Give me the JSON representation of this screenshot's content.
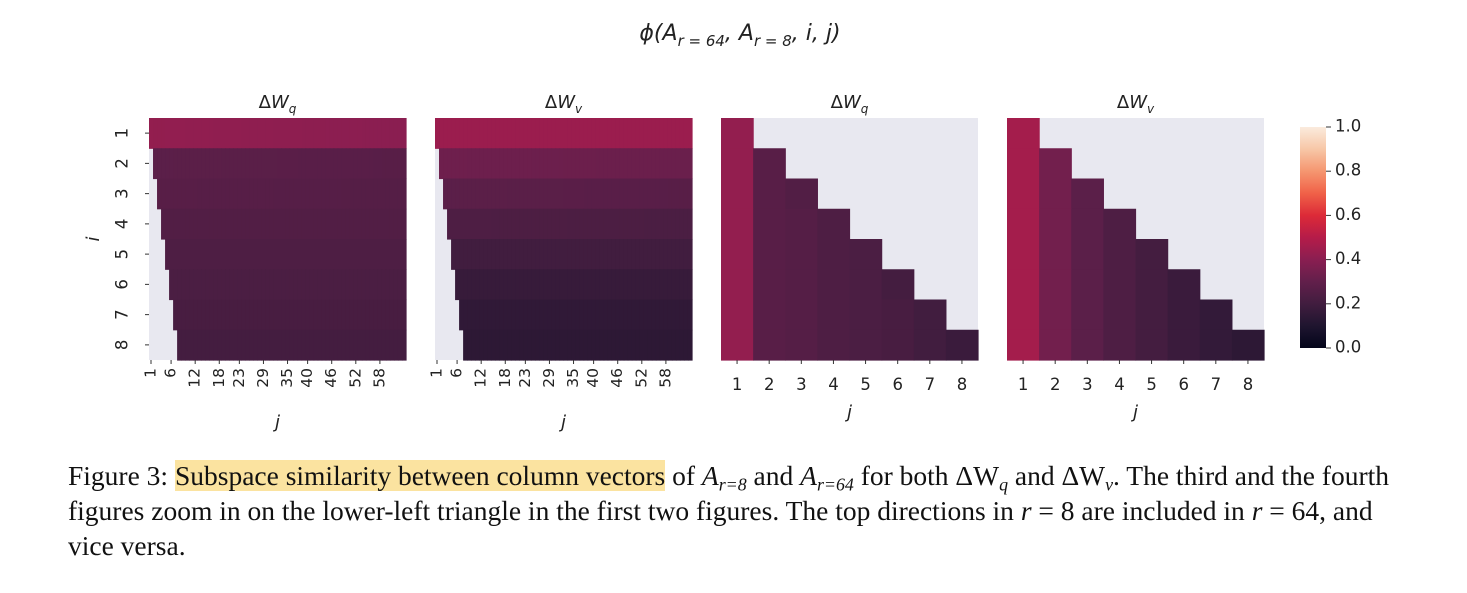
{
  "figure": {
    "suptitle_prefix": "ϕ(A",
    "suptitle_sub1": "r = 64",
    "suptitle_sep1": ", A",
    "suptitle_sub2": "r = 8",
    "suptitle_suffix": ", i, j)"
  },
  "chart_data": [
    {
      "type": "heatmap",
      "title": "ΔWq",
      "ylabel": "i",
      "xlabel": "j",
      "y_categories": [
        "1",
        "2",
        "3",
        "4",
        "5",
        "6",
        "7",
        "8"
      ],
      "x_tick_labels": [
        "1",
        "6",
        "12",
        "18",
        "23",
        "29",
        "35",
        "40",
        "46",
        "52",
        "58"
      ],
      "n_columns": 64,
      "left_start": [
        0.42,
        0.28,
        0.27,
        0.25,
        0.24,
        0.23,
        0.22,
        0.21
      ],
      "right_end": [
        0.4,
        0.27,
        0.26,
        0.25,
        0.24,
        0.23,
        0.22,
        0.21
      ]
    },
    {
      "type": "heatmap",
      "title": "ΔWv",
      "ylabel": "",
      "xlabel": "j",
      "y_categories": [
        "1",
        "2",
        "3",
        "4",
        "5",
        "6",
        "7",
        "8"
      ],
      "x_tick_labels": [
        "1",
        "6",
        "12",
        "18",
        "23",
        "29",
        "35",
        "40",
        "46",
        "52",
        "58"
      ],
      "n_columns": 64,
      "left_start": [
        0.44,
        0.33,
        0.28,
        0.24,
        0.2,
        0.17,
        0.15,
        0.14
      ],
      "right_end": [
        0.44,
        0.32,
        0.27,
        0.23,
        0.2,
        0.17,
        0.15,
        0.14
      ]
    },
    {
      "type": "heatmap",
      "title": "ΔWq",
      "ylabel": "",
      "xlabel": "j",
      "y_categories": [
        "1",
        "2",
        "3",
        "4",
        "5",
        "6",
        "7",
        "8"
      ],
      "x_categories": [
        "1",
        "2",
        "3",
        "4",
        "5",
        "6",
        "7",
        "8"
      ],
      "matrix": [
        [
          0.42,
          null,
          null,
          null,
          null,
          null,
          null,
          null
        ],
        [
          0.42,
          0.27,
          null,
          null,
          null,
          null,
          null,
          null
        ],
        [
          0.42,
          0.27,
          0.25,
          null,
          null,
          null,
          null,
          null
        ],
        [
          0.42,
          0.27,
          0.26,
          0.24,
          null,
          null,
          null,
          null
        ],
        [
          0.42,
          0.27,
          0.26,
          0.24,
          0.23,
          null,
          null,
          null
        ],
        [
          0.42,
          0.27,
          0.26,
          0.24,
          0.23,
          0.21,
          null,
          null
        ],
        [
          0.42,
          0.27,
          0.26,
          0.24,
          0.23,
          0.22,
          0.2,
          null
        ],
        [
          0.42,
          0.27,
          0.26,
          0.24,
          0.23,
          0.22,
          0.2,
          0.18
        ]
      ]
    },
    {
      "type": "heatmap",
      "title": "ΔWv",
      "ylabel": "",
      "xlabel": "j",
      "y_categories": [
        "1",
        "2",
        "3",
        "4",
        "5",
        "6",
        "7",
        "8"
      ],
      "x_categories": [
        "1",
        "2",
        "3",
        "4",
        "5",
        "6",
        "7",
        "8"
      ],
      "matrix": [
        [
          0.46,
          null,
          null,
          null,
          null,
          null,
          null,
          null
        ],
        [
          0.46,
          0.34,
          null,
          null,
          null,
          null,
          null,
          null
        ],
        [
          0.46,
          0.34,
          0.28,
          null,
          null,
          null,
          null,
          null
        ],
        [
          0.46,
          0.34,
          0.28,
          0.24,
          null,
          null,
          null,
          null
        ],
        [
          0.46,
          0.34,
          0.28,
          0.24,
          0.21,
          null,
          null,
          null
        ],
        [
          0.46,
          0.34,
          0.28,
          0.24,
          0.21,
          0.18,
          null,
          null
        ],
        [
          0.46,
          0.34,
          0.28,
          0.24,
          0.21,
          0.18,
          0.16,
          null
        ],
        [
          0.46,
          0.34,
          0.28,
          0.24,
          0.21,
          0.18,
          0.16,
          0.14
        ]
      ]
    }
  ],
  "colorbar": {
    "ticks": [
      "1.0",
      "0.8",
      "0.6",
      "0.4",
      "0.2",
      "0.0"
    ],
    "range": [
      0,
      1
    ],
    "colormap": "rocket",
    "masked_color": "#e8e8f0"
  },
  "caption": {
    "prefix": "Figure 3: ",
    "highlight": "Subspace similarity between column vectors",
    "text1": " of ",
    "A": "A",
    "sub_r8": "r=8",
    "text2": " and ",
    "sub_r64": "r=64",
    "text3": " for both ",
    "dW": "ΔW",
    "q": "q",
    "text4": " and ",
    "v": "v",
    "text5": ". The third and the fourth figures zoom in on the lower-left triangle in the first two figures. The top directions in ",
    "r": "r",
    "eq8": " = 8",
    "text6": " are included in ",
    "eq64": " = 64",
    "text7": ", and vice versa."
  }
}
